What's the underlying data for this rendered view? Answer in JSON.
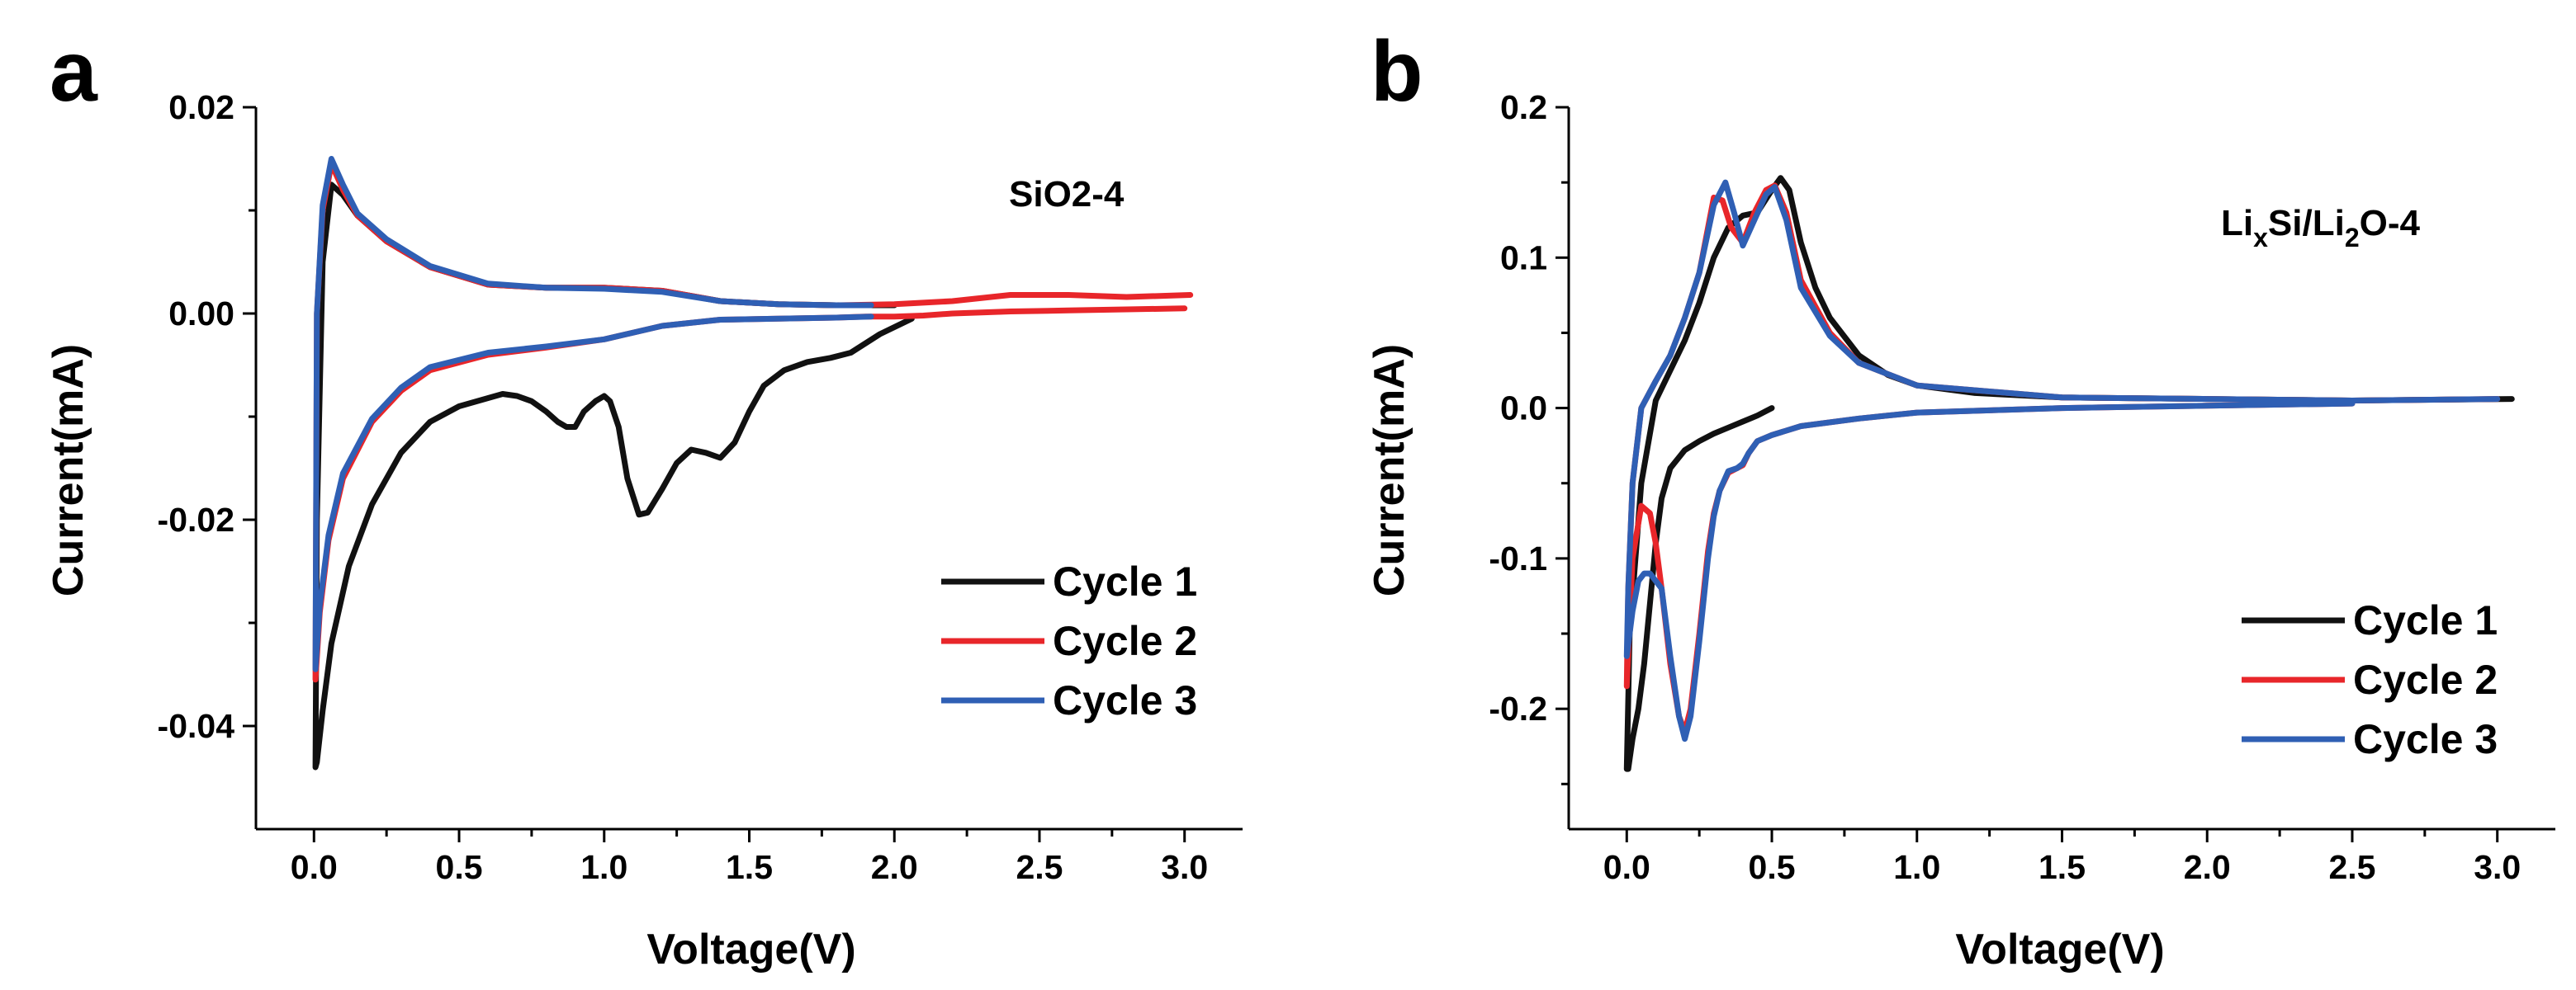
{
  "colors": {
    "cycle1": "#111111",
    "cycle2": "#e8262a",
    "cycle3": "#2f5fb4"
  },
  "chart_data": [
    {
      "type": "line",
      "panel": "a",
      "annotation": "SiO2-4",
      "xlabel": "Voltage(V)",
      "ylabel": "Current(mA)",
      "xlim": [
        -0.2,
        3.2
      ],
      "ylim": [
        -0.05,
        0.02
      ],
      "xticks": [
        0.0,
        0.5,
        1.0,
        1.5,
        2.0,
        2.5,
        3.0
      ],
      "xtick_labels": [
        "0.0",
        "0.5",
        "1.0",
        "1.5",
        "2.0",
        "2.5",
        "3.0"
      ],
      "yticks": [
        0.02,
        0.0,
        -0.02,
        -0.04
      ],
      "ytick_labels": [
        "0.02",
        "0.00",
        "-0.02",
        "-0.04"
      ],
      "legend_position": "bottom-right",
      "series": [
        {
          "name": "Cycle 1",
          "x": [
            2.06,
            1.95,
            1.85,
            1.78,
            1.7,
            1.62,
            1.55,
            1.5,
            1.45,
            1.4,
            1.35,
            1.3,
            1.25,
            1.2,
            1.15,
            1.12,
            1.08,
            1.05,
            1.02,
            1.0,
            0.97,
            0.93,
            0.9,
            0.87,
            0.84,
            0.8,
            0.75,
            0.7,
            0.65,
            0.6,
            0.5,
            0.4,
            0.3,
            0.2,
            0.12,
            0.06,
            0.03,
            0.01,
            0.005,
            0.01,
            0.03,
            0.06,
            0.1,
            0.15,
            0.25,
            0.4,
            0.6,
            0.8,
            1.0,
            1.2,
            1.4,
            1.6,
            1.8,
            2.0
          ],
          "y": [
            -0.0005,
            -0.002,
            -0.0038,
            -0.0043,
            -0.0047,
            -0.0055,
            -0.007,
            -0.0095,
            -0.0125,
            -0.014,
            -0.0135,
            -0.0132,
            -0.0145,
            -0.017,
            -0.0193,
            -0.0195,
            -0.016,
            -0.011,
            -0.0085,
            -0.008,
            -0.0085,
            -0.0095,
            -0.011,
            -0.011,
            -0.0105,
            -0.0095,
            -0.0085,
            -0.008,
            -0.0078,
            -0.0082,
            -0.009,
            -0.0105,
            -0.0135,
            -0.0185,
            -0.0245,
            -0.032,
            -0.0385,
            -0.0435,
            -0.044,
            -0.02,
            0.005,
            0.0125,
            0.0115,
            0.0095,
            0.007,
            0.0045,
            0.0028,
            0.0025,
            0.0025,
            0.0022,
            0.0012,
            0.0009,
            0.0008,
            0.0008
          ]
        },
        {
          "name": "Cycle 2",
          "x": [
            3.0,
            2.8,
            2.6,
            2.4,
            2.3,
            2.2,
            2.1,
            2.0,
            1.9,
            1.8,
            1.6,
            1.4,
            1.2,
            1.0,
            0.8,
            0.6,
            0.4,
            0.3,
            0.2,
            0.1,
            0.05,
            0.02,
            0.005,
            0.01,
            0.03,
            0.06,
            0.1,
            0.15,
            0.25,
            0.4,
            0.6,
            0.8,
            1.0,
            1.2,
            1.4,
            1.6,
            1.8,
            2.0,
            2.2,
            2.4,
            2.6,
            2.8,
            3.02
          ],
          "y": [
            0.0005,
            0.0004,
            0.0003,
            0.0002,
            0.0001,
            0.0,
            -0.0002,
            -0.0003,
            -0.0003,
            -0.0004,
            -0.0005,
            -0.0006,
            -0.0012,
            -0.0025,
            -0.0033,
            -0.004,
            -0.0055,
            -0.0075,
            -0.0105,
            -0.016,
            -0.022,
            -0.029,
            -0.0355,
            -0.0,
            0.01,
            0.0145,
            0.012,
            0.0095,
            0.007,
            0.0045,
            0.0028,
            0.0025,
            0.0025,
            0.0022,
            0.0012,
            0.0009,
            0.0008,
            0.0009,
            0.0012,
            0.0018,
            0.0018,
            0.0016,
            0.0018
          ]
        },
        {
          "name": "Cycle 3",
          "x": [
            1.92,
            1.8,
            1.6,
            1.4,
            1.2,
            1.0,
            0.8,
            0.6,
            0.4,
            0.3,
            0.2,
            0.1,
            0.05,
            0.02,
            0.005,
            0.01,
            0.03,
            0.06,
            0.1,
            0.15,
            0.25,
            0.4,
            0.6,
            0.8,
            1.0,
            1.2,
            1.4,
            1.6,
            1.8,
            1.92
          ],
          "y": [
            -0.0003,
            -0.0004,
            -0.0005,
            -0.0006,
            -0.0012,
            -0.0025,
            -0.0032,
            -0.0038,
            -0.0052,
            -0.0072,
            -0.0102,
            -0.0155,
            -0.0215,
            -0.0283,
            -0.0345,
            -0.0,
            0.0105,
            0.015,
            0.0125,
            0.0097,
            0.0072,
            0.0046,
            0.0029,
            0.0025,
            0.0024,
            0.0021,
            0.0012,
            0.0009,
            0.0008,
            0.0008
          ]
        }
      ]
    },
    {
      "type": "line",
      "panel": "b",
      "annotation": "LixSi/Li2O-4",
      "annotation_parts": [
        "Li",
        "x",
        "Si/Li",
        "2",
        "O-4"
      ],
      "xlabel": "Voltage(V)",
      "ylabel": "Current(mA)",
      "xlim": [
        -0.2,
        3.2
      ],
      "ylim": [
        -0.28,
        0.2
      ],
      "xticks": [
        0.0,
        0.5,
        1.0,
        1.5,
        2.0,
        2.5,
        3.0
      ],
      "xtick_labels": [
        "0.0",
        "0.5",
        "1.0",
        "1.5",
        "2.0",
        "2.5",
        "3.0"
      ],
      "yticks": [
        0.2,
        0.1,
        0.0,
        -0.1,
        -0.2
      ],
      "ytick_labels": [
        "0.2",
        "0.1",
        "0.0",
        "-0.1",
        "-0.2"
      ],
      "legend_position": "bottom-right",
      "series": [
        {
          "name": "Cycle 1",
          "x": [
            0.5,
            0.45,
            0.4,
            0.35,
            0.3,
            0.25,
            0.2,
            0.15,
            0.12,
            0.1,
            0.08,
            0.06,
            0.04,
            0.02,
            0.005,
            0.0,
            0.01,
            0.05,
            0.1,
            0.15,
            0.2,
            0.25,
            0.3,
            0.35,
            0.4,
            0.45,
            0.5,
            0.53,
            0.56,
            0.6,
            0.65,
            0.7,
            0.8,
            0.9,
            1.0,
            1.2,
            1.5,
            2.0,
            2.5,
            3.05
          ],
          "y": [
            0.0,
            -0.005,
            -0.009,
            -0.013,
            -0.017,
            -0.022,
            -0.028,
            -0.04,
            -0.06,
            -0.09,
            -0.13,
            -0.17,
            -0.2,
            -0.22,
            -0.24,
            -0.24,
            -0.15,
            -0.05,
            0.005,
            0.025,
            0.045,
            0.07,
            0.1,
            0.12,
            0.128,
            0.13,
            0.145,
            0.153,
            0.145,
            0.11,
            0.08,
            0.06,
            0.035,
            0.022,
            0.015,
            0.01,
            0.007,
            0.006,
            0.005,
            0.006
          ]
        },
        {
          "name": "Cycle 2",
          "x": [
            2.5,
            2.0,
            1.5,
            1.0,
            0.8,
            0.6,
            0.5,
            0.45,
            0.42,
            0.4,
            0.38,
            0.35,
            0.32,
            0.3,
            0.28,
            0.25,
            0.22,
            0.2,
            0.18,
            0.15,
            0.12,
            0.1,
            0.08,
            0.05,
            0.02,
            0.0,
            0.005,
            0.02,
            0.05,
            0.1,
            0.15,
            0.2,
            0.25,
            0.3,
            0.33,
            0.36,
            0.4,
            0.44,
            0.48,
            0.51,
            0.55,
            0.6,
            0.7,
            0.8,
            1.0,
            1.5,
            2.0,
            2.5,
            3.0
          ],
          "y": [
            0.003,
            0.0015,
            0.0,
            -0.003,
            -0.007,
            -0.012,
            -0.018,
            -0.022,
            -0.03,
            -0.038,
            -0.04,
            -0.043,
            -0.055,
            -0.07,
            -0.095,
            -0.15,
            -0.2,
            -0.215,
            -0.205,
            -0.17,
            -0.12,
            -0.09,
            -0.07,
            -0.065,
            -0.1,
            -0.185,
            -0.12,
            -0.05,
            0.0,
            0.018,
            0.035,
            0.06,
            0.09,
            0.14,
            0.138,
            0.12,
            0.11,
            0.13,
            0.145,
            0.148,
            0.13,
            0.085,
            0.05,
            0.03,
            0.015,
            0.007,
            0.006,
            0.005,
            0.006
          ]
        },
        {
          "name": "Cycle 3",
          "x": [
            2.5,
            2.0,
            1.5,
            1.0,
            0.8,
            0.6,
            0.5,
            0.45,
            0.42,
            0.4,
            0.38,
            0.35,
            0.32,
            0.3,
            0.28,
            0.25,
            0.22,
            0.2,
            0.18,
            0.15,
            0.12,
            0.1,
            0.08,
            0.06,
            0.04,
            0.02,
            0.0,
            0.005,
            0.02,
            0.05,
            0.1,
            0.15,
            0.2,
            0.25,
            0.3,
            0.34,
            0.37,
            0.4,
            0.44,
            0.48,
            0.51,
            0.55,
            0.6,
            0.7,
            0.8,
            1.0,
            1.5,
            2.0,
            2.5,
            3.0
          ],
          "y": [
            0.003,
            0.0015,
            0.0,
            -0.003,
            -0.007,
            -0.012,
            -0.018,
            -0.022,
            -0.03,
            -0.037,
            -0.04,
            -0.042,
            -0.055,
            -0.072,
            -0.1,
            -0.155,
            -0.205,
            -0.22,
            -0.205,
            -0.165,
            -0.12,
            -0.115,
            -0.11,
            -0.11,
            -0.115,
            -0.135,
            -0.165,
            -0.12,
            -0.05,
            0.0,
            0.018,
            0.035,
            0.06,
            0.09,
            0.135,
            0.15,
            0.13,
            0.108,
            0.125,
            0.142,
            0.147,
            0.125,
            0.08,
            0.048,
            0.03,
            0.015,
            0.007,
            0.006,
            0.005,
            0.006
          ]
        }
      ]
    }
  ]
}
